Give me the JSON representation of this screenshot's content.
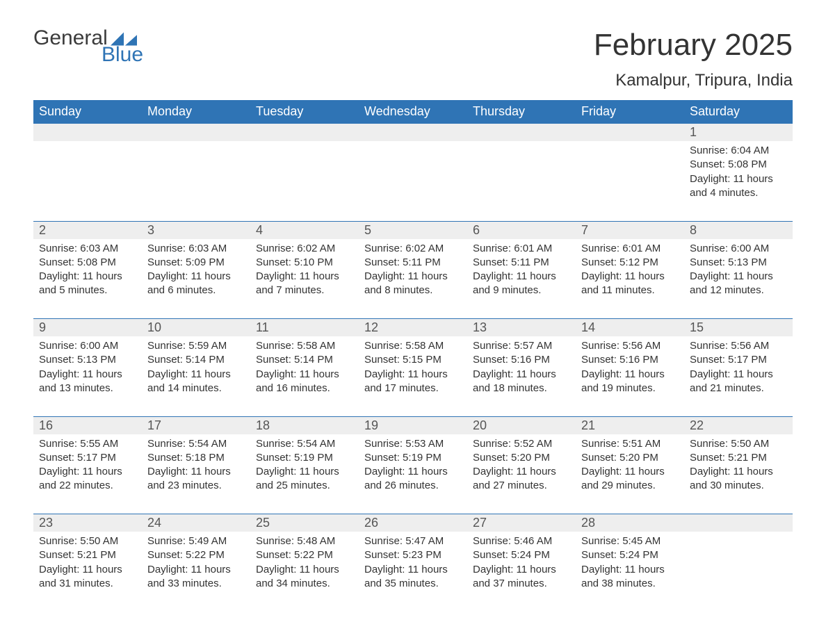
{
  "brand": {
    "word1": "General",
    "word2": "Blue",
    "text_color": "#3b3b3b",
    "accent_color": "#2f74b5"
  },
  "title": "February 2025",
  "location": "Kamalpur, Tripura, India",
  "colors": {
    "header_bg": "#2f74b5",
    "header_text": "#ffffff",
    "daynum_bg": "#eeeeee",
    "rule": "#2f74b5",
    "body_text": "#333333",
    "page_bg": "#ffffff"
  },
  "day_headers": [
    "Sunday",
    "Monday",
    "Tuesday",
    "Wednesday",
    "Thursday",
    "Friday",
    "Saturday"
  ],
  "weeks": [
    [
      null,
      null,
      null,
      null,
      null,
      null,
      {
        "n": "1",
        "sunrise": "6:04 AM",
        "sunset": "5:08 PM",
        "daylight": "11 hours and 4 minutes."
      }
    ],
    [
      {
        "n": "2",
        "sunrise": "6:03 AM",
        "sunset": "5:08 PM",
        "daylight": "11 hours and 5 minutes."
      },
      {
        "n": "3",
        "sunrise": "6:03 AM",
        "sunset": "5:09 PM",
        "daylight": "11 hours and 6 minutes."
      },
      {
        "n": "4",
        "sunrise": "6:02 AM",
        "sunset": "5:10 PM",
        "daylight": "11 hours and 7 minutes."
      },
      {
        "n": "5",
        "sunrise": "6:02 AM",
        "sunset": "5:11 PM",
        "daylight": "11 hours and 8 minutes."
      },
      {
        "n": "6",
        "sunrise": "6:01 AM",
        "sunset": "5:11 PM",
        "daylight": "11 hours and 9 minutes."
      },
      {
        "n": "7",
        "sunrise": "6:01 AM",
        "sunset": "5:12 PM",
        "daylight": "11 hours and 11 minutes."
      },
      {
        "n": "8",
        "sunrise": "6:00 AM",
        "sunset": "5:13 PM",
        "daylight": "11 hours and 12 minutes."
      }
    ],
    [
      {
        "n": "9",
        "sunrise": "6:00 AM",
        "sunset": "5:13 PM",
        "daylight": "11 hours and 13 minutes."
      },
      {
        "n": "10",
        "sunrise": "5:59 AM",
        "sunset": "5:14 PM",
        "daylight": "11 hours and 14 minutes."
      },
      {
        "n": "11",
        "sunrise": "5:58 AM",
        "sunset": "5:14 PM",
        "daylight": "11 hours and 16 minutes."
      },
      {
        "n": "12",
        "sunrise": "5:58 AM",
        "sunset": "5:15 PM",
        "daylight": "11 hours and 17 minutes."
      },
      {
        "n": "13",
        "sunrise": "5:57 AM",
        "sunset": "5:16 PM",
        "daylight": "11 hours and 18 minutes."
      },
      {
        "n": "14",
        "sunrise": "5:56 AM",
        "sunset": "5:16 PM",
        "daylight": "11 hours and 19 minutes."
      },
      {
        "n": "15",
        "sunrise": "5:56 AM",
        "sunset": "5:17 PM",
        "daylight": "11 hours and 21 minutes."
      }
    ],
    [
      {
        "n": "16",
        "sunrise": "5:55 AM",
        "sunset": "5:17 PM",
        "daylight": "11 hours and 22 minutes."
      },
      {
        "n": "17",
        "sunrise": "5:54 AM",
        "sunset": "5:18 PM",
        "daylight": "11 hours and 23 minutes."
      },
      {
        "n": "18",
        "sunrise": "5:54 AM",
        "sunset": "5:19 PM",
        "daylight": "11 hours and 25 minutes."
      },
      {
        "n": "19",
        "sunrise": "5:53 AM",
        "sunset": "5:19 PM",
        "daylight": "11 hours and 26 minutes."
      },
      {
        "n": "20",
        "sunrise": "5:52 AM",
        "sunset": "5:20 PM",
        "daylight": "11 hours and 27 minutes."
      },
      {
        "n": "21",
        "sunrise": "5:51 AM",
        "sunset": "5:20 PM",
        "daylight": "11 hours and 29 minutes."
      },
      {
        "n": "22",
        "sunrise": "5:50 AM",
        "sunset": "5:21 PM",
        "daylight": "11 hours and 30 minutes."
      }
    ],
    [
      {
        "n": "23",
        "sunrise": "5:50 AM",
        "sunset": "5:21 PM",
        "daylight": "11 hours and 31 minutes."
      },
      {
        "n": "24",
        "sunrise": "5:49 AM",
        "sunset": "5:22 PM",
        "daylight": "11 hours and 33 minutes."
      },
      {
        "n": "25",
        "sunrise": "5:48 AM",
        "sunset": "5:22 PM",
        "daylight": "11 hours and 34 minutes."
      },
      {
        "n": "26",
        "sunrise": "5:47 AM",
        "sunset": "5:23 PM",
        "daylight": "11 hours and 35 minutes."
      },
      {
        "n": "27",
        "sunrise": "5:46 AM",
        "sunset": "5:24 PM",
        "daylight": "11 hours and 37 minutes."
      },
      {
        "n": "28",
        "sunrise": "5:45 AM",
        "sunset": "5:24 PM",
        "daylight": "11 hours and 38 minutes."
      },
      null
    ]
  ],
  "labels": {
    "sunrise": "Sunrise: ",
    "sunset": "Sunset: ",
    "daylight": "Daylight: "
  }
}
